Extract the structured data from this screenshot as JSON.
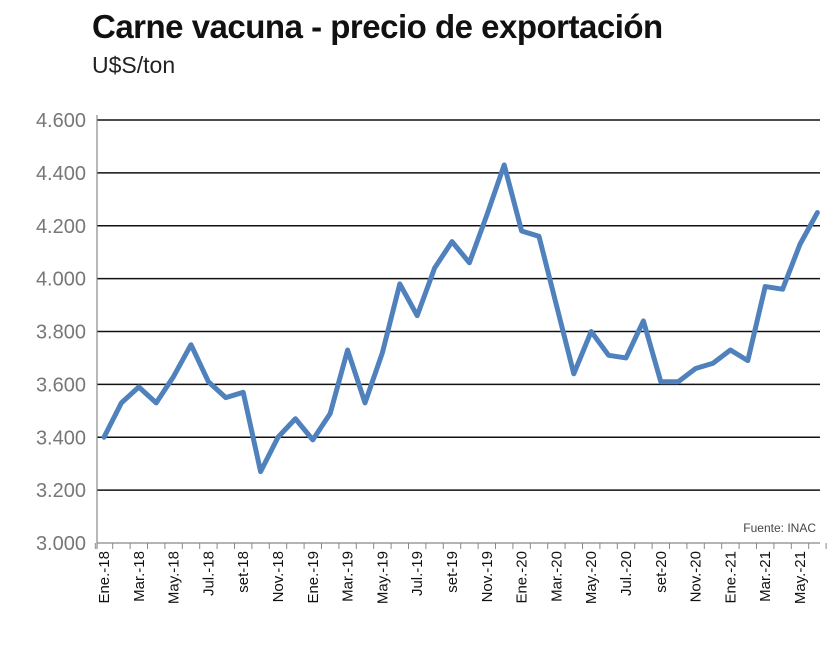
{
  "chart_data": {
    "type": "line",
    "title": "Carne vacuna - precio de exportación",
    "subtitle": "U$S/ton",
    "source": "Fuente: INAC",
    "x_tick_labels": [
      "Ene.-18",
      "Mar.-18",
      "May.-18",
      "Jul.-18",
      "set-18",
      "Nov.-18",
      "Ene.-19",
      "Mar.-19",
      "May.-19",
      "Jul.-19",
      "set-19",
      "Nov.-19",
      "Ene.-20",
      "Mar.-20",
      "May.-20",
      "Jul.-20",
      "set-20",
      "Nov.-20",
      "Ene.-21",
      "Mar.-21",
      "May.-21"
    ],
    "y_tick_labels": [
      "3.000",
      "3.200",
      "3.400",
      "3.600",
      "3.800",
      "4.000",
      "4.200",
      "4.400",
      "4.600"
    ],
    "ylim": [
      3000,
      4600
    ],
    "y_step": 200,
    "frequency": "monthly, Ene.-18 to Jun.-21",
    "values": [
      3400,
      3530,
      3590,
      3530,
      3630,
      3750,
      3610,
      3550,
      3570,
      3270,
      3400,
      3470,
      3390,
      3490,
      3730,
      3530,
      3720,
      3980,
      3860,
      4040,
      4140,
      4060,
      4240,
      4430,
      4180,
      4160,
      3900,
      3640,
      3800,
      3710,
      3700,
      3840,
      3610,
      3610,
      3660,
      3680,
      3730,
      3690,
      3970,
      3960,
      4130,
      4250
    ],
    "grid": true,
    "line_color": "#4f81bd"
  }
}
